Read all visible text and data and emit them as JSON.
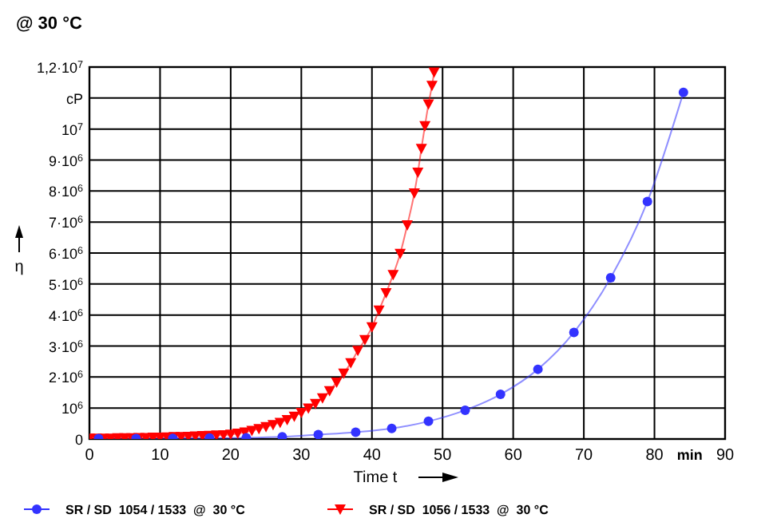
{
  "chart_data": {
    "type": "line",
    "title": "@ 30 °C",
    "xlabel": "Time t",
    "ylabel": "η",
    "xlim": [
      0,
      90
    ],
    "xticks": [
      0,
      10,
      20,
      30,
      40,
      50,
      60,
      70,
      80,
      {
        "value": 85,
        "label": "min"
      },
      90
    ],
    "ylim": [
      0,
      12000000
    ],
    "yticks": [
      {
        "value": 0,
        "label": "0"
      },
      {
        "value": 1000000,
        "label": "10$^{6}$"
      },
      {
        "value": 2000000,
        "label": "2·10$^{6}$"
      },
      {
        "value": 3000000,
        "label": "3·10$^{6}$"
      },
      {
        "value": 4000000,
        "label": "4·10$^{6}$"
      },
      {
        "value": 5000000,
        "label": "5·10$^{6}$"
      },
      {
        "value": 6000000,
        "label": "6·10$^{6}$"
      },
      {
        "value": 7000000,
        "label": "7·10$^{6}$"
      },
      {
        "value": 8000000,
        "label": "8·10$^{6}$"
      },
      {
        "value": 9000000,
        "label": "9·10$^{6}$"
      },
      {
        "value": 10000000,
        "label": "10$^{7}$"
      },
      {
        "value": 11000000,
        "label": "cP"
      },
      {
        "value": 12000000,
        "label": "1,2·10$^{7}$"
      }
    ],
    "grid": true,
    "legend": "bottom",
    "series": [
      {
        "name": "SR / SD  1054 / 1533  @  30 °C",
        "color": "#3333ff",
        "marker": "circle",
        "x": [
          1.3,
          6.6,
          11.8,
          17,
          22.2,
          27.3,
          32.4,
          37.7,
          42.8,
          48,
          53.2,
          58.2,
          63.5,
          68.6,
          73.8,
          79,
          84.1
        ],
        "values": [
          10000,
          10000,
          20000,
          30000,
          40000,
          70000,
          140000,
          220000,
          340000,
          570000,
          930000,
          1440000,
          2250000,
          3440000,
          5200000,
          7660000,
          11180000
        ]
      },
      {
        "name": "SR / SD  1056 / 1533  @  30 °C",
        "color": "#ff0000",
        "marker": "triangle",
        "x": [
          0,
          1,
          2,
          3,
          4,
          5,
          6,
          7,
          8,
          9,
          10,
          11,
          12,
          13,
          14,
          15,
          16,
          17,
          18,
          19,
          20,
          21,
          22,
          23,
          24,
          25,
          26,
          27,
          28,
          29,
          30,
          31,
          32,
          33,
          34,
          35,
          36,
          37,
          38,
          39,
          40,
          41,
          42,
          43,
          44,
          45,
          46,
          46.5,
          47,
          47.5,
          48,
          48.5,
          48.8
        ],
        "values": [
          20000,
          20000,
          20000,
          20000,
          30000,
          30000,
          30000,
          40000,
          40000,
          50000,
          50000,
          60000,
          70000,
          70000,
          80000,
          90000,
          100000,
          110000,
          120000,
          130000,
          150000,
          180000,
          220000,
          270000,
          330000,
          390000,
          460000,
          530000,
          620000,
          730000,
          850000,
          990000,
          1140000,
          1320000,
          1550000,
          1830000,
          2120000,
          2450000,
          2850000,
          3200000,
          3610000,
          4150000,
          4710000,
          5300000,
          5980000,
          6900000,
          7930000,
          8600000,
          9370000,
          10100000,
          10800000,
          11400000,
          11830000
        ]
      }
    ]
  }
}
